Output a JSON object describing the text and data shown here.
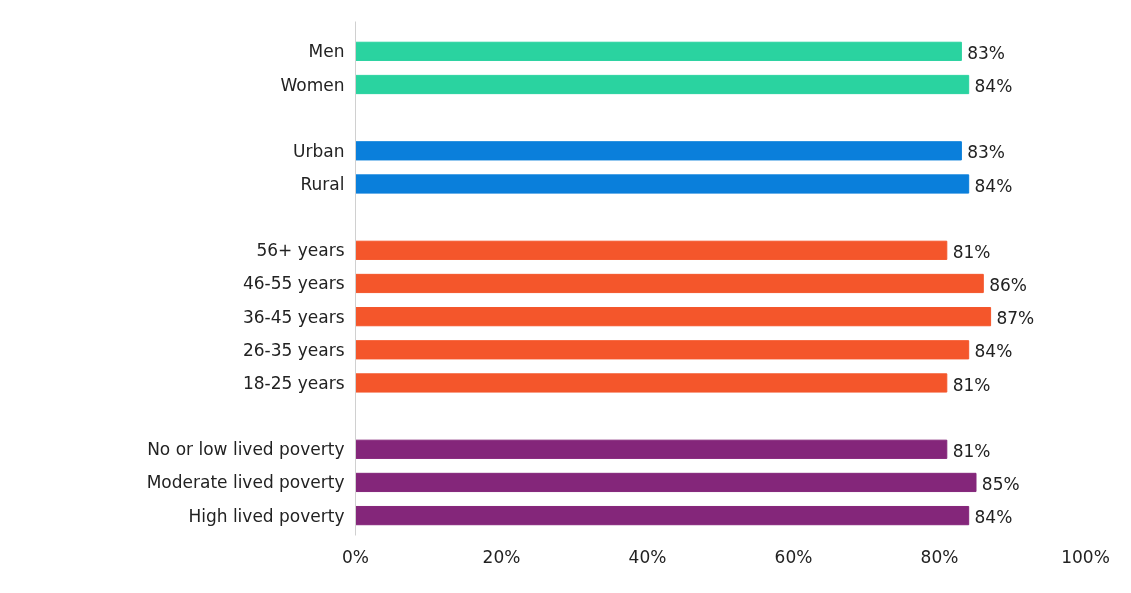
{
  "chart_data": {
    "type": "bar",
    "orientation": "horizontal",
    "categories": [
      "Men",
      "Women",
      null,
      "Urban",
      "Rural",
      null,
      "56+ years",
      "46-55 years",
      "36-45 years",
      "26-35 years",
      "18-25 years",
      null,
      "No or low lived poverty",
      "Moderate lived poverty",
      "High lived poverty"
    ],
    "values": [
      83,
      84,
      null,
      83,
      84,
      null,
      81,
      86,
      87,
      84,
      81,
      null,
      81,
      85,
      84
    ],
    "value_labels": [
      "83%",
      "84%",
      null,
      "83%",
      "84%",
      null,
      "81%",
      "86%",
      "87%",
      "84%",
      "81%",
      null,
      "81%",
      "85%",
      "84%"
    ],
    "colors": [
      "#2ad3a0",
      "#2ad3a0",
      null,
      "#0a7fdb",
      "#0a7fdb",
      null,
      "#f4562b",
      "#f4562b",
      "#f4562b",
      "#f4562b",
      "#f4562b",
      null,
      "#84267a",
      "#84267a",
      "#84267a"
    ],
    "xlim": [
      0,
      100
    ],
    "xticks": [
      {
        "value": 0,
        "label": "0%"
      },
      {
        "value": 20,
        "label": "20%"
      },
      {
        "value": 40,
        "label": "40%"
      },
      {
        "value": 60,
        "label": "60%"
      },
      {
        "value": 80,
        "label": "80%"
      },
      {
        "value": 100,
        "label": "100%"
      }
    ],
    "grid": false
  }
}
